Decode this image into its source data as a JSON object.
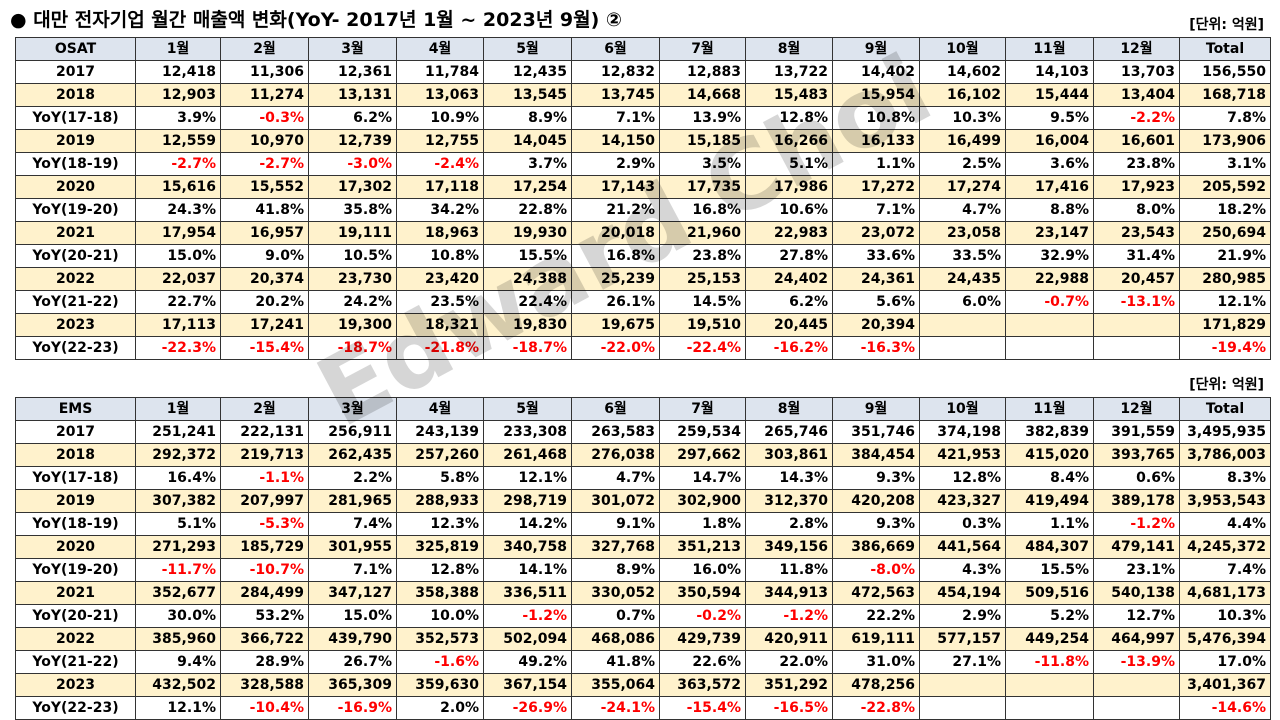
{
  "title": "● 대만 전자기업 월간 매출액 변화(YoY- 2017년 1월 ~  2023년 9월) ②",
  "unit_label": "[단위: 억원]",
  "watermark": "Edward Choi",
  "tables": [
    {
      "id": "osat",
      "header": [
        "OSAT",
        "1월",
        "2월",
        "3월",
        "4월",
        "5월",
        "6월",
        "7월",
        "8월",
        "9월",
        "10월",
        "11월",
        "12월",
        "Total"
      ],
      "rows": [
        [
          "2017",
          "12,418",
          "11,306",
          "12,361",
          "11,784",
          "12,435",
          "12,832",
          "12,883",
          "13,722",
          "14,402",
          "14,602",
          "14,103",
          "13,703",
          "156,550"
        ],
        [
          "2018",
          "12,903",
          "11,274",
          "13,131",
          "13,063",
          "13,545",
          "13,745",
          "14,668",
          "15,483",
          "15,954",
          "16,102",
          "15,444",
          "13,404",
          "168,718"
        ],
        [
          "YoY(17-18)",
          "3.9%",
          "-0.3%",
          "6.2%",
          "10.9%",
          "8.9%",
          "7.1%",
          "13.9%",
          "12.8%",
          "10.8%",
          "10.3%",
          "9.5%",
          "-2.2%",
          "7.8%"
        ],
        [
          "2019",
          "12,559",
          "10,970",
          "12,739",
          "12,755",
          "14,045",
          "14,150",
          "15,185",
          "16,266",
          "16,133",
          "16,499",
          "16,004",
          "16,601",
          "173,906"
        ],
        [
          "YoY(18-19)",
          "-2.7%",
          "-2.7%",
          "-3.0%",
          "-2.4%",
          "3.7%",
          "2.9%",
          "3.5%",
          "5.1%",
          "1.1%",
          "2.5%",
          "3.6%",
          "23.8%",
          "3.1%"
        ],
        [
          "2020",
          "15,616",
          "15,552",
          "17,302",
          "17,118",
          "17,254",
          "17,143",
          "17,735",
          "17,986",
          "17,272",
          "17,274",
          "17,416",
          "17,923",
          "205,592"
        ],
        [
          "YoY(19-20)",
          "24.3%",
          "41.8%",
          "35.8%",
          "34.2%",
          "22.8%",
          "21.2%",
          "16.8%",
          "10.6%",
          "7.1%",
          "4.7%",
          "8.8%",
          "8.0%",
          "18.2%"
        ],
        [
          "2021",
          "17,954",
          "16,957",
          "19,111",
          "18,963",
          "19,930",
          "20,018",
          "21,960",
          "22,983",
          "23,072",
          "23,058",
          "23,147",
          "23,543",
          "250,694"
        ],
        [
          "YoY(20-21)",
          "15.0%",
          "9.0%",
          "10.5%",
          "10.8%",
          "15.5%",
          "16.8%",
          "23.8%",
          "27.8%",
          "33.6%",
          "33.5%",
          "32.9%",
          "31.4%",
          "21.9%"
        ],
        [
          "2022",
          "22,037",
          "20,374",
          "23,730",
          "23,420",
          "24,388",
          "25,239",
          "25,153",
          "24,402",
          "24,361",
          "24,435",
          "22,988",
          "20,457",
          "280,985"
        ],
        [
          "YoY(21-22)",
          "22.7%",
          "20.2%",
          "24.2%",
          "23.5%",
          "22.4%",
          "26.1%",
          "14.5%",
          "6.2%",
          "5.6%",
          "6.0%",
          "-0.7%",
          "-13.1%",
          "12.1%"
        ],
        [
          "2023",
          "17,113",
          "17,241",
          "19,300",
          "18,321",
          "19,830",
          "19,675",
          "19,510",
          "20,445",
          "20,394",
          "",
          "",
          "",
          "171,829"
        ],
        [
          "YoY(22-23)",
          "-22.3%",
          "-15.4%",
          "-18.7%",
          "-21.8%",
          "-18.7%",
          "-22.0%",
          "-22.4%",
          "-16.2%",
          "-16.3%",
          "",
          "",
          "",
          "-19.4%"
        ]
      ]
    },
    {
      "id": "ems",
      "header": [
        "EMS",
        "1월",
        "2월",
        "3월",
        "4월",
        "5월",
        "6월",
        "7월",
        "8월",
        "9월",
        "10월",
        "11월",
        "12월",
        "Total"
      ],
      "rows": [
        [
          "2017",
          "251,241",
          "222,131",
          "256,911",
          "243,139",
          "233,308",
          "263,583",
          "259,534",
          "265,746",
          "351,746",
          "374,198",
          "382,839",
          "391,559",
          "3,495,935"
        ],
        [
          "2018",
          "292,372",
          "219,713",
          "262,435",
          "257,260",
          "261,468",
          "276,038",
          "297,662",
          "303,861",
          "384,454",
          "421,953",
          "415,020",
          "393,765",
          "3,786,003"
        ],
        [
          "YoY(17-18)",
          "16.4%",
          "-1.1%",
          "2.2%",
          "5.8%",
          "12.1%",
          "4.7%",
          "14.7%",
          "14.3%",
          "9.3%",
          "12.8%",
          "8.4%",
          "0.6%",
          "8.3%"
        ],
        [
          "2019",
          "307,382",
          "207,997",
          "281,965",
          "288,933",
          "298,719",
          "301,072",
          "302,900",
          "312,370",
          "420,208",
          "423,327",
          "419,494",
          "389,178",
          "3,953,543"
        ],
        [
          "YoY(18-19)",
          "5.1%",
          "-5.3%",
          "7.4%",
          "12.3%",
          "14.2%",
          "9.1%",
          "1.8%",
          "2.8%",
          "9.3%",
          "0.3%",
          "1.1%",
          "-1.2%",
          "4.4%"
        ],
        [
          "2020",
          "271,293",
          "185,729",
          "301,955",
          "325,819",
          "340,758",
          "327,768",
          "351,213",
          "349,156",
          "386,669",
          "441,564",
          "484,307",
          "479,141",
          "4,245,372"
        ],
        [
          "YoY(19-20)",
          "-11.7%",
          "-10.7%",
          "7.1%",
          "12.8%",
          "14.1%",
          "8.9%",
          "16.0%",
          "11.8%",
          "-8.0%",
          "4.3%",
          "15.5%",
          "23.1%",
          "7.4%"
        ],
        [
          "2021",
          "352,677",
          "284,499",
          "347,127",
          "358,388",
          "336,511",
          "330,052",
          "350,594",
          "344,913",
          "472,563",
          "454,194",
          "509,516",
          "540,138",
          "4,681,173"
        ],
        [
          "YoY(20-21)",
          "30.0%",
          "53.2%",
          "15.0%",
          "10.0%",
          "-1.2%",
          "0.7%",
          "-0.2%",
          "-1.2%",
          "22.2%",
          "2.9%",
          "5.2%",
          "12.7%",
          "10.3%"
        ],
        [
          "2022",
          "385,960",
          "366,722",
          "439,790",
          "352,573",
          "502,094",
          "468,086",
          "429,739",
          "420,911",
          "619,111",
          "577,157",
          "449,254",
          "464,997",
          "5,476,394"
        ],
        [
          "YoY(21-22)",
          "9.4%",
          "28.9%",
          "26.7%",
          "-1.6%",
          "49.2%",
          "41.8%",
          "22.6%",
          "22.0%",
          "31.0%",
          "27.1%",
          "-11.8%",
          "-13.9%",
          "17.0%"
        ],
        [
          "2023",
          "432,502",
          "328,588",
          "365,309",
          "359,630",
          "367,154",
          "355,064",
          "363,572",
          "351,292",
          "478,256",
          "",
          "",
          "",
          "3,401,367"
        ],
        [
          "YoY(22-23)",
          "12.1%",
          "-10.4%",
          "-16.9%",
          "2.0%",
          "-26.9%",
          "-24.1%",
          "-15.4%",
          "-16.5%",
          "-22.8%",
          "",
          "",
          "",
          "-14.6%"
        ]
      ]
    }
  ]
}
